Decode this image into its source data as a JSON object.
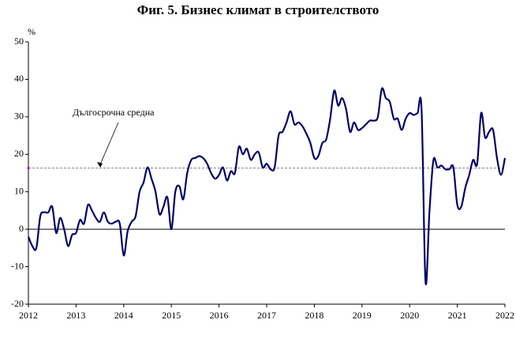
{
  "chart_data": {
    "type": "line",
    "title": "Фиг. 5. Бизнес климат в строителството",
    "y_unit": "%",
    "annotation": "Дългосрочна средна",
    "average": 16.3,
    "average_color": "#666666",
    "xlim": [
      2012,
      2022
    ],
    "xticks": [
      2012,
      2013,
      2014,
      2015,
      2016,
      2017,
      2018,
      2019,
      2020,
      2021,
      2022
    ],
    "ylim": [
      -20,
      50
    ],
    "yticks": [
      -20,
      -10,
      0,
      10,
      20,
      30,
      40,
      50
    ],
    "x": [
      2012,
      2012.083,
      2012.167,
      2012.25,
      2012.333,
      2012.417,
      2012.5,
      2012.583,
      2012.667,
      2012.75,
      2012.833,
      2012.917,
      2013,
      2013.083,
      2013.167,
      2013.25,
      2013.333,
      2013.417,
      2013.5,
      2013.583,
      2013.667,
      2013.75,
      2013.833,
      2013.917,
      2014,
      2014.083,
      2014.167,
      2014.25,
      2014.333,
      2014.417,
      2014.5,
      2014.583,
      2014.667,
      2014.75,
      2014.833,
      2014.917,
      2015,
      2015.083,
      2015.167,
      2015.25,
      2015.333,
      2015.417,
      2015.5,
      2015.583,
      2015.667,
      2015.75,
      2015.833,
      2015.917,
      2016,
      2016.083,
      2016.167,
      2016.25,
      2016.333,
      2016.417,
      2016.5,
      2016.583,
      2016.667,
      2016.75,
      2016.833,
      2016.917,
      2017,
      2017.083,
      2017.167,
      2017.25,
      2017.333,
      2017.417,
      2017.5,
      2017.583,
      2017.667,
      2017.75,
      2017.833,
      2017.917,
      2018,
      2018.083,
      2018.167,
      2018.25,
      2018.333,
      2018.417,
      2018.5,
      2018.583,
      2018.667,
      2018.75,
      2018.833,
      2018.917,
      2019,
      2019.083,
      2019.167,
      2019.25,
      2019.333,
      2019.417,
      2019.5,
      2019.583,
      2019.667,
      2019.75,
      2019.833,
      2019.917,
      2020,
      2020.083,
      2020.167,
      2020.25,
      2020.333,
      2020.417,
      2020.5,
      2020.583,
      2020.667,
      2020.75,
      2020.833,
      2020.917,
      2021,
      2021.083,
      2021.167,
      2021.25,
      2021.333,
      2021.417,
      2021.5,
      2021.583,
      2021.667,
      2021.75,
      2021.833,
      2021.917,
      2022
    ],
    "series": [
      {
        "color": "#000066",
        "values": [
          -2,
          -4.5,
          -5,
          3.5,
          4.5,
          4.5,
          6,
          -1,
          3,
          0,
          -4.5,
          -1.5,
          -1,
          2.5,
          1.5,
          6.5,
          5,
          3,
          2,
          4.5,
          2,
          1.5,
          2,
          1.5,
          -7,
          -0.5,
          2,
          3.5,
          10,
          12.5,
          16.5,
          13.5,
          10,
          4,
          6,
          8.5,
          0,
          10,
          11.5,
          8,
          15,
          18.5,
          19,
          19.5,
          19,
          17.5,
          15,
          13.5,
          14.5,
          16.5,
          13,
          15.5,
          15,
          22,
          20,
          21.5,
          18.5,
          20,
          20.5,
          16.5,
          17.5,
          16,
          16.5,
          25,
          26,
          28.5,
          31.5,
          28,
          28.5,
          27.5,
          25.5,
          23,
          19,
          19.5,
          23,
          24,
          29.5,
          37,
          33,
          35,
          32,
          26,
          28.5,
          26.5,
          27,
          28,
          29,
          29,
          30,
          37.5,
          35,
          34,
          29.5,
          29.5,
          26.5,
          29.5,
          31,
          30.5,
          31,
          32,
          -14,
          5,
          18.5,
          16.5,
          17,
          16,
          16,
          16.5,
          6.5,
          6,
          11,
          14.5,
          18.5,
          17.5,
          31,
          24.5,
          26,
          26.5,
          19,
          14.5,
          19
        ]
      }
    ]
  }
}
